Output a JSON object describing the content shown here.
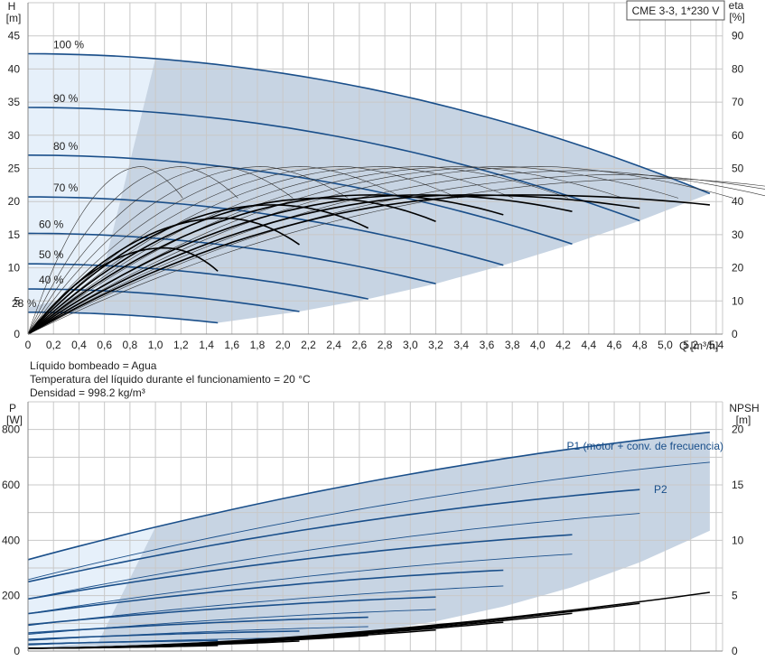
{
  "colors": {
    "curve_blue": "#1a4f8a",
    "region_fill": "#c7d4e3",
    "region_light": "#e6f0fa",
    "grid": "#c8c8c8",
    "efficiency": "#000000"
  },
  "notes": [
    "Líquido bombeado = Agua",
    "Temperatura del líquido durante el funcionamiento = 20 °C",
    "Densidad = 998.2 kg/m³"
  ],
  "chart_data": [
    {
      "type": "line",
      "model_label": "CME 3-3, 1*230 V",
      "x_axis_label": "Q [m³/h]",
      "xlim": [
        0,
        5.45
      ],
      "x_ticks": [
        "0",
        "0,2",
        "0,4",
        "0,6",
        "0,8",
        "1,0",
        "1,2",
        "1,4",
        "1,6",
        "1,8",
        "2,0",
        "2,2",
        "2,4",
        "2,6",
        "2,8",
        "3,0",
        "3,2",
        "3,4",
        "3,6",
        "3,8",
        "4,0",
        "4,2",
        "4,4",
        "4,6",
        "4,8",
        "5,0",
        "5,2",
        "5,4"
      ],
      "y_left_label_1": "H",
      "y_left_label_2": "[m]",
      "ylim_left": [
        0,
        50
      ],
      "y_left_ticks": [
        "0",
        "5",
        "10",
        "15",
        "20",
        "25",
        "30",
        "35",
        "40",
        "45"
      ],
      "y_right_label_1": "eta",
      "y_right_label_2": "[%]",
      "ylim_right": [
        0,
        100
      ],
      "y_right_ticks": [
        "0",
        "10",
        "20",
        "30",
        "40",
        "50",
        "60",
        "70",
        "80",
        "90"
      ],
      "grid": true,
      "head_curves": [
        {
          "label": "100 %",
          "h0": 42.3,
          "qmax": 5.35,
          "hend": 21.2
        },
        {
          "label": "90 %",
          "h0": 34.2,
          "qmax": 4.8,
          "hend": 17.1
        },
        {
          "label": "80 %",
          "h0": 27.0,
          "qmax": 4.27,
          "hend": 13.6
        },
        {
          "label": "70 %",
          "h0": 20.7,
          "qmax": 3.73,
          "hend": 10.4
        },
        {
          "label": "60 %",
          "h0": 15.2,
          "qmax": 3.2,
          "hend": 7.6
        },
        {
          "label": "50 %",
          "h0": 10.6,
          "qmax": 2.67,
          "hend": 5.3
        },
        {
          "label": "40 %",
          "h0": 6.8,
          "qmax": 2.13,
          "hend": 3.4
        },
        {
          "label": "28 %",
          "h0": 3.3,
          "qmax": 1.49,
          "hend": 1.7
        }
      ],
      "efficiency_curves": [
        {
          "qmax": 5.35,
          "eta_max": 42,
          "eta_end": 39
        },
        {
          "qmax": 4.8,
          "eta_max": 42,
          "eta_end": 38
        },
        {
          "qmax": 4.27,
          "eta_max": 42,
          "eta_end": 37
        },
        {
          "qmax": 3.73,
          "eta_max": 42,
          "eta_end": 36
        },
        {
          "qmax": 3.2,
          "eta_max": 41,
          "eta_end": 34
        },
        {
          "qmax": 2.67,
          "eta_max": 39,
          "eta_end": 32
        },
        {
          "qmax": 2.13,
          "eta_max": 35,
          "eta_end": 27
        },
        {
          "qmax": 1.49,
          "eta_max": 26,
          "eta_end": 19
        }
      ]
    },
    {
      "type": "line",
      "y_left_label_1": "P",
      "y_left_label_2": "[W]",
      "ylim_left": [
        0,
        900
      ],
      "y_left_ticks": [
        "0",
        "200",
        "400",
        "600",
        "800"
      ],
      "y_right_label_1": "NPSH",
      "y_right_label_2": "[m]",
      "ylim_right": [
        0,
        22.5
      ],
      "y_right_ticks": [
        "0",
        "5",
        "10",
        "15",
        "20"
      ],
      "xlim": [
        0,
        5.45
      ],
      "grid": true,
      "series_label_p1": "P1 (motor + conv. de frecuencia)",
      "series_label_p2": "P2",
      "power_curves": [
        {
          "qmax": 5.35,
          "p1_start": 330,
          "p1_end": 790,
          "p2_start": 258,
          "p2_end": 682
        },
        {
          "qmax": 4.8,
          "p1_start": 250,
          "p1_end": 583,
          "p2_start": 188,
          "p2_end": 497
        },
        {
          "qmax": 4.27,
          "p1_start": 188,
          "p1_end": 420,
          "p2_start": 135,
          "p2_end": 350
        },
        {
          "qmax": 3.73,
          "p1_start": 135,
          "p1_end": 292,
          "p2_start": 92,
          "p2_end": 235
        },
        {
          "qmax": 3.2,
          "p1_start": 95,
          "p1_end": 195,
          "p2_start": 60,
          "p2_end": 150
        },
        {
          "qmax": 2.67,
          "p1_start": 65,
          "p1_end": 122,
          "p2_start": 38,
          "p2_end": 88
        },
        {
          "qmax": 2.13,
          "p1_start": 42,
          "p1_end": 72,
          "p2_start": 22,
          "p2_end": 48
        },
        {
          "qmax": 1.49,
          "p1_start": 25,
          "p1_end": 38,
          "p2_start": 10,
          "p2_end": 20
        }
      ],
      "npsh_curves": [
        {
          "qmax": 5.35,
          "npsh_end": 5.3
        },
        {
          "qmax": 4.8,
          "npsh_end": 4.3
        },
        {
          "qmax": 4.27,
          "npsh_end": 3.4
        },
        {
          "qmax": 3.73,
          "npsh_end": 2.6
        },
        {
          "qmax": 3.2,
          "npsh_end": 1.9
        },
        {
          "qmax": 2.67,
          "npsh_end": 1.4
        },
        {
          "qmax": 2.13,
          "npsh_end": 0.9
        },
        {
          "qmax": 1.49,
          "npsh_end": 0.5
        }
      ]
    }
  ]
}
